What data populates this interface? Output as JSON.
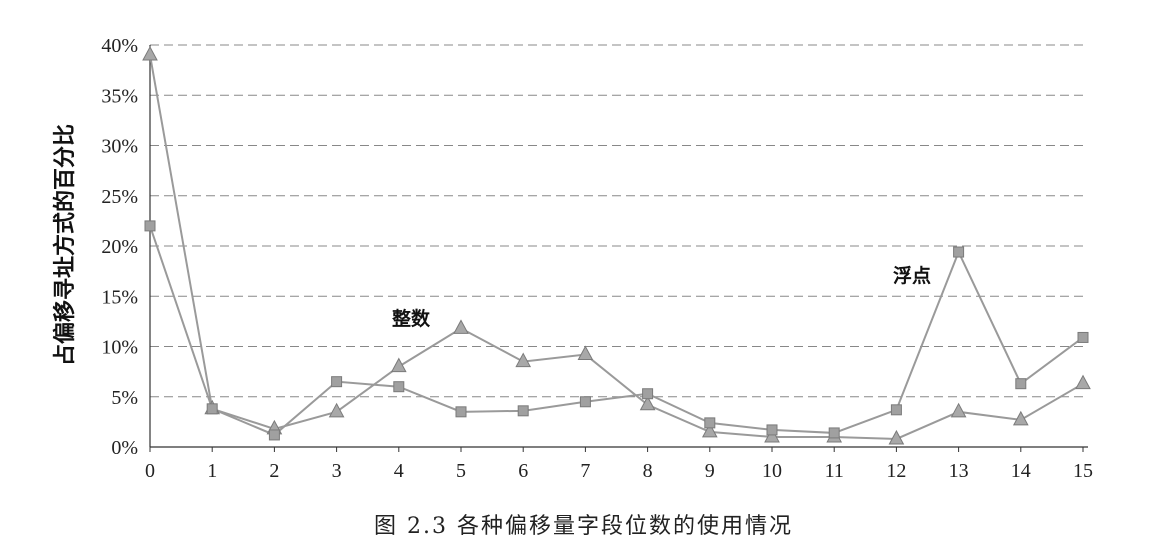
{
  "chart_data": {
    "type": "line",
    "title": "",
    "xlabel": "",
    "ylabel": "占偏移寻址方式的百分比",
    "x": [
      0,
      1,
      2,
      3,
      4,
      5,
      6,
      7,
      8,
      9,
      10,
      11,
      12,
      13,
      14,
      15
    ],
    "xlim": [
      0,
      15
    ],
    "ylim": [
      0,
      40
    ],
    "yticks": [
      "0%",
      "5%",
      "10%",
      "15%",
      "20%",
      "25%",
      "30%",
      "35%",
      "40%"
    ],
    "grid": true,
    "series": [
      {
        "name": "整数",
        "marker": "triangle",
        "color": "#9a9a9a",
        "values": [
          39,
          3.8,
          1.8,
          3.5,
          8,
          11.8,
          8.5,
          9.2,
          4.2,
          1.5,
          1,
          1,
          0.8,
          3.5,
          2.7,
          6.3
        ]
      },
      {
        "name": "浮点",
        "marker": "square",
        "color": "#9a9a9a",
        "values": [
          22,
          3.8,
          1.2,
          6.5,
          6,
          3.5,
          3.6,
          4.5,
          5.3,
          2.4,
          1.7,
          1.4,
          3.7,
          19.4,
          6.3,
          10.9
        ]
      }
    ]
  },
  "caption": "图 2.3   各种偏移量字段位数的使用情况"
}
